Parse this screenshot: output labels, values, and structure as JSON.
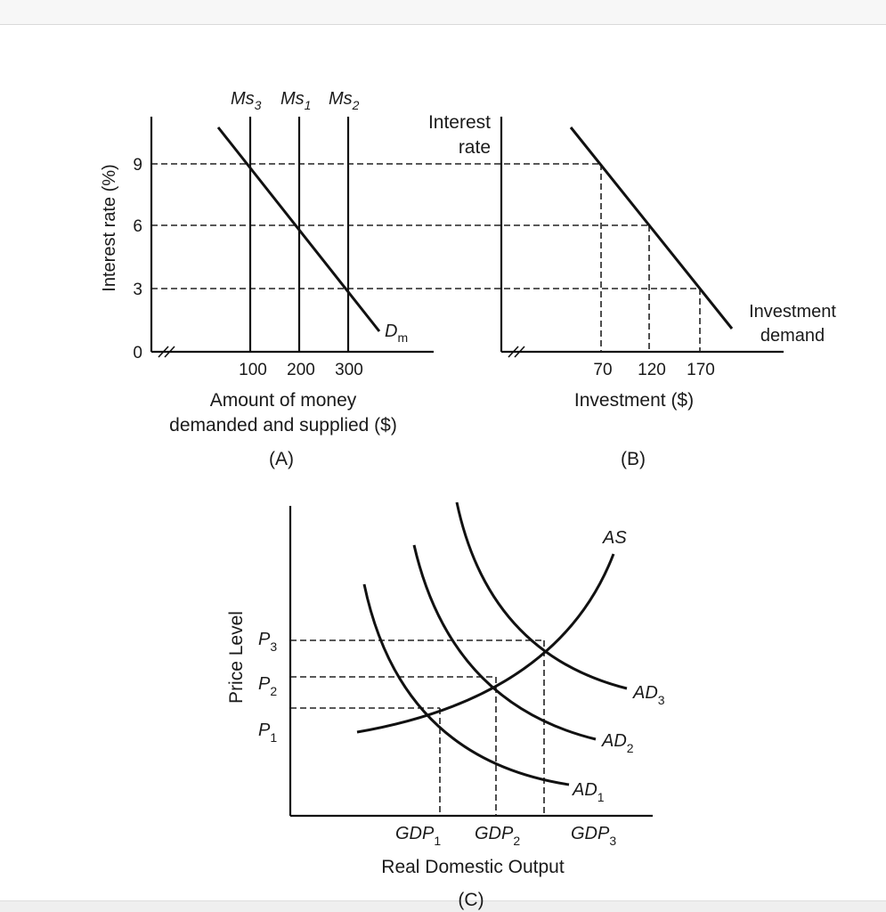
{
  "chart_data": [
    {
      "type": "line",
      "panel_label": "(A)",
      "ylabel": "Interest rate (%)",
      "xlabel_line1": "Amount of money",
      "xlabel_line2": "demanded and supplied ($)",
      "yticks": [
        "0",
        "3",
        "6",
        "9"
      ],
      "xticks": [
        "100",
        "200",
        "300"
      ],
      "supply_lines": [
        {
          "label": "Ms",
          "sub": "3",
          "x": 100
        },
        {
          "label": "Ms",
          "sub": "1",
          "x": 200
        },
        {
          "label": "Ms",
          "sub": "2",
          "x": 300
        }
      ],
      "demand_label": "D",
      "demand_sub": "m",
      "series": [
        {
          "name": "Dm",
          "points": [
            [
              100,
              9
            ],
            [
              200,
              6
            ],
            [
              300,
              3
            ]
          ]
        }
      ],
      "equilibria": [
        [
          100,
          9
        ],
        [
          200,
          6
        ],
        [
          300,
          3
        ]
      ]
    },
    {
      "type": "line",
      "panel_label": "(B)",
      "ylabel_line1": "Interest",
      "ylabel_line2": "rate",
      "xlabel": "Investment ($)",
      "xticks": [
        "70",
        "120",
        "170"
      ],
      "curve_label_line1": "Investment",
      "curve_label_line2": "demand",
      "series": [
        {
          "name": "Investment demand",
          "points": [
            [
              70,
              9
            ],
            [
              120,
              6
            ],
            [
              170,
              3
            ]
          ]
        }
      ]
    },
    {
      "type": "line",
      "panel_label": "(C)",
      "ylabel": "Price Level",
      "xlabel": "Real Domestic Output",
      "y_levels": [
        {
          "label": "P",
          "sub": "1"
        },
        {
          "label": "P",
          "sub": "2"
        },
        {
          "label": "P",
          "sub": "3"
        }
      ],
      "x_levels": [
        {
          "label": "GDP",
          "sub": "1"
        },
        {
          "label": "GDP",
          "sub": "2"
        },
        {
          "label": "GDP",
          "sub": "3"
        }
      ],
      "curves": [
        {
          "label": "AS",
          "sub": ""
        },
        {
          "label": "AD",
          "sub": "1"
        },
        {
          "label": "AD",
          "sub": "2"
        },
        {
          "label": "AD",
          "sub": "3"
        }
      ]
    }
  ]
}
